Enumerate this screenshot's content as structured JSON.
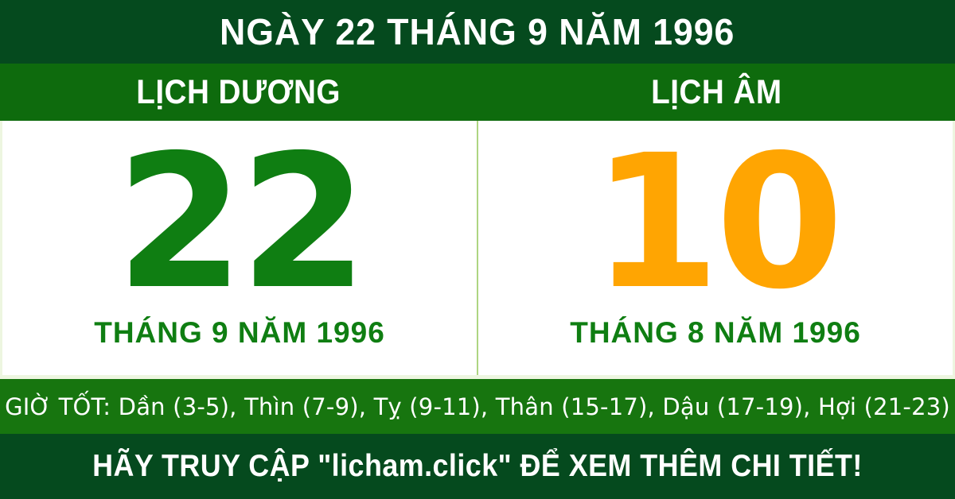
{
  "colors": {
    "dark_green": "#054a1e",
    "band_green": "#0e6b0d",
    "hours_green": "#17750f",
    "number_green": "#0f7e12",
    "number_orange": "#ffa502",
    "divider_green": "#aed581",
    "panel_edge": "#edf6e0",
    "text_white": "#ffffff"
  },
  "banner": {
    "title": "NGÀY 22 THÁNG 9 NĂM 1996"
  },
  "calendar": {
    "solar": {
      "header": "LỊCH DƯƠNG",
      "day": "22",
      "month_year": "THÁNG 9 NĂM 1996"
    },
    "lunar": {
      "header": "LỊCH ÂM",
      "day": "10",
      "month_year": "THÁNG 8 NĂM 1996"
    }
  },
  "good_hours": {
    "text": "GIỜ TỐT: Dần (3-5), Thìn (7-9), Tỵ (9-11), Thân (15-17), Dậu (17-19), Hợi (21-23)"
  },
  "footer": {
    "cta": "HÃY TRUY CẬP \"licham.click\" ĐỂ XEM THÊM CHI TIẾT!"
  }
}
